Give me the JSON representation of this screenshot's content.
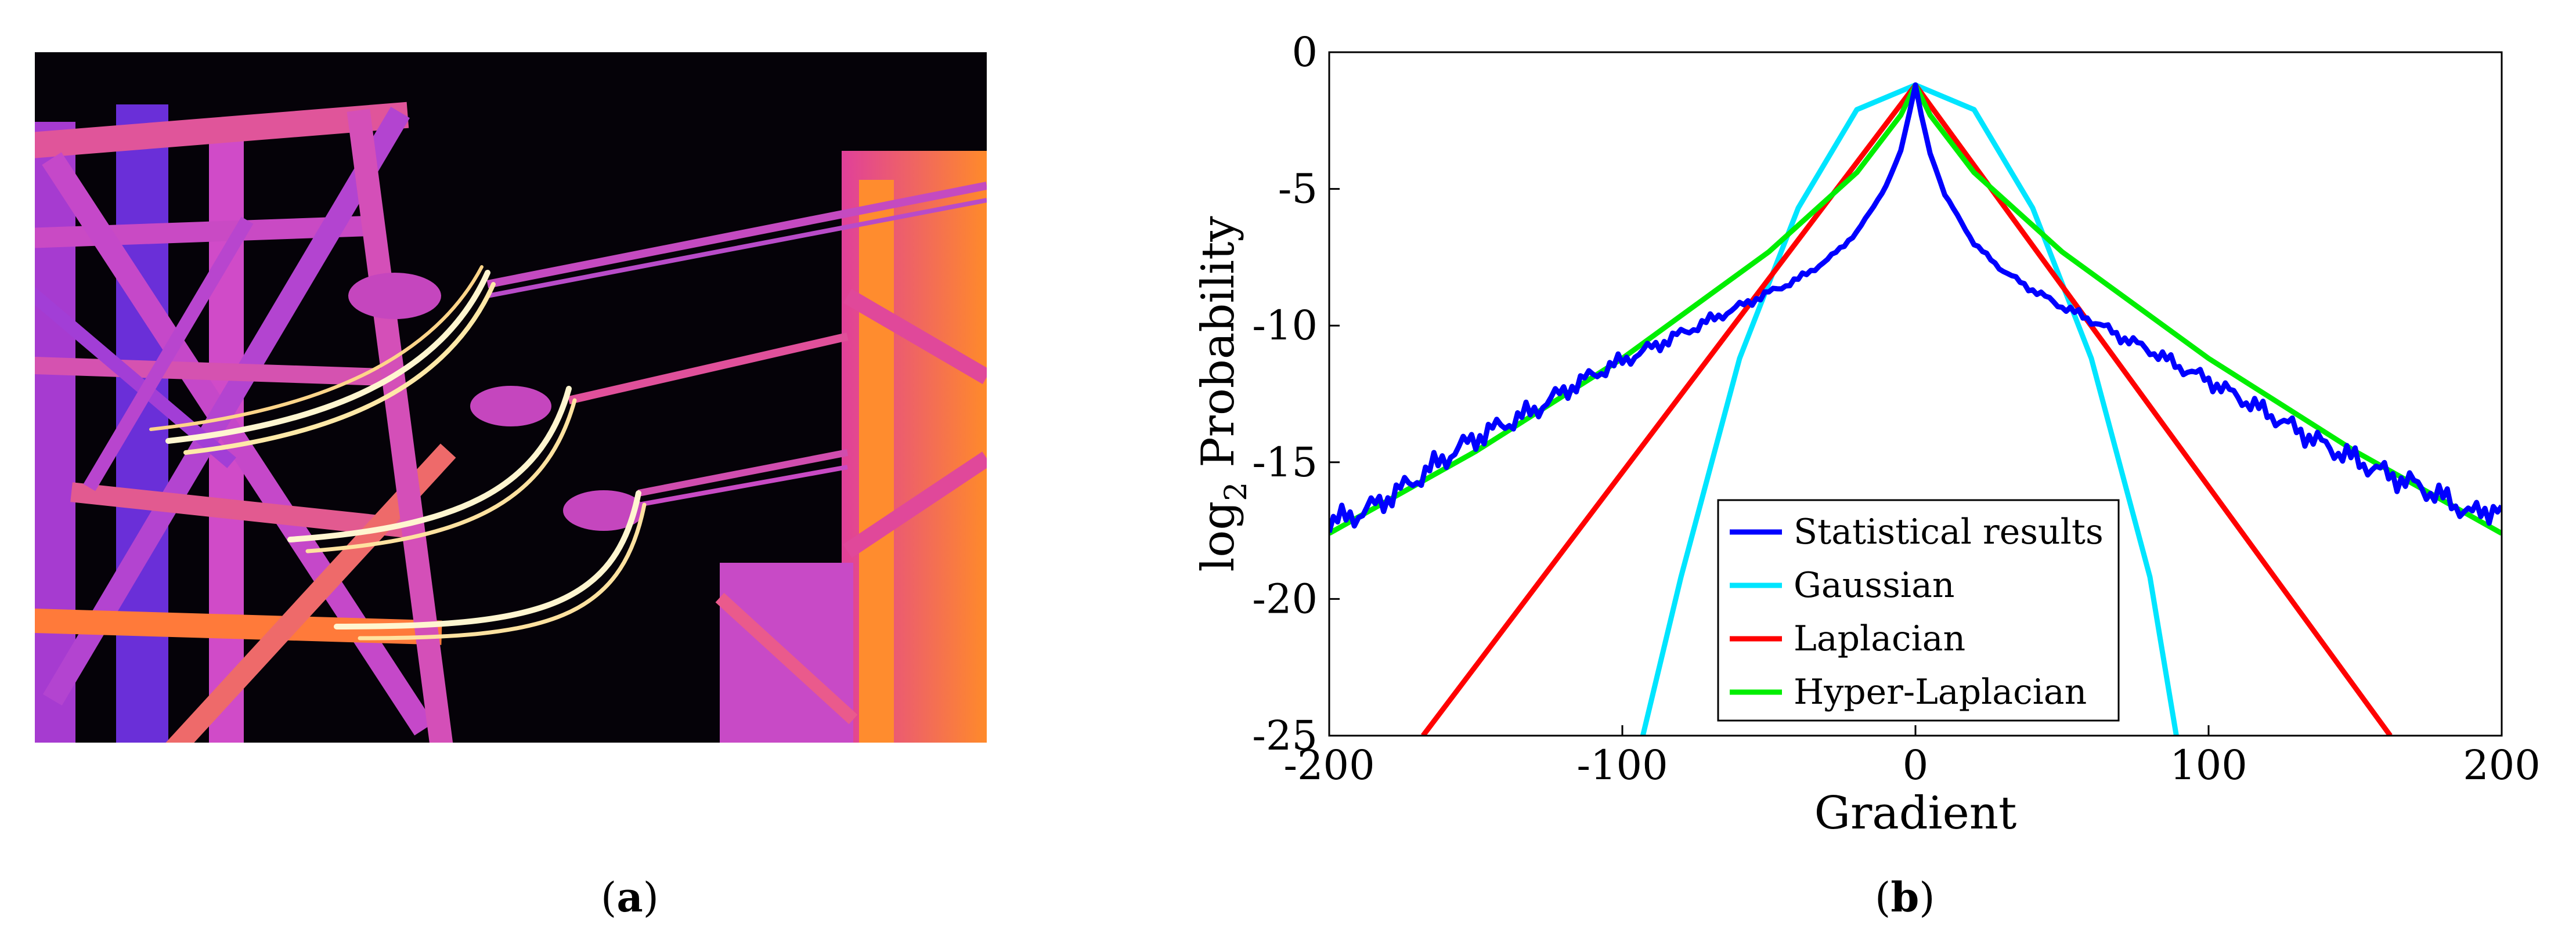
{
  "panels": {
    "a": {
      "label": "a"
    },
    "b": {
      "label": "b"
    }
  },
  "chart_data": {
    "type": "line",
    "xlabel": "Gradient",
    "ylabel_main": "log",
    "ylabel_sub": "2",
    "ylabel_rest": " Probability",
    "xlim": [
      -200,
      200
    ],
    "ylim": [
      -25,
      0
    ],
    "xticks": [
      -200,
      -100,
      0,
      100,
      200
    ],
    "yticks": [
      0,
      -5,
      -10,
      -15,
      -20,
      -25
    ],
    "legend_position": "lower-center",
    "series": [
      {
        "name": "Statistical results",
        "color": "#0000ff",
        "x": [
          -200,
          -190,
          -180,
          -170,
          -160,
          -150,
          -140,
          -130,
          -120,
          -110,
          -100,
          -90,
          -80,
          -70,
          -60,
          -50,
          -40,
          -30,
          -20,
          -10,
          -5,
          -2,
          0,
          2,
          5,
          10,
          20,
          30,
          40,
          50,
          60,
          70,
          80,
          90,
          100,
          110,
          120,
          130,
          140,
          150,
          160,
          170,
          180,
          190,
          200
        ],
        "y": [
          -17.2,
          -16.9,
          -16.3,
          -15.6,
          -14.8,
          -14.1,
          -13.6,
          -13.1,
          -12.4,
          -11.8,
          -11.3,
          -10.8,
          -10.3,
          -9.8,
          -9.3,
          -8.8,
          -8.3,
          -7.6,
          -6.6,
          -4.9,
          -3.6,
          -2.2,
          -1.2,
          -2.3,
          -3.7,
          -5.2,
          -7.0,
          -8.0,
          -8.7,
          -9.3,
          -9.8,
          -10.4,
          -10.9,
          -11.5,
          -12.0,
          -12.6,
          -13.2,
          -13.8,
          -14.4,
          -14.9,
          -15.4,
          -15.8,
          -16.3,
          -16.9,
          -16.6
        ]
      },
      {
        "name": "Gaussian",
        "color": "#00e5ff",
        "x": [
          -93,
          -80,
          -60,
          -40,
          -20,
          0,
          20,
          40,
          60,
          80,
          89
        ],
        "y": [
          -25,
          -19.2,
          -11.2,
          -5.7,
          -2.1,
          -1.2,
          -2.1,
          -5.7,
          -11.2,
          -19.2,
          -25
        ]
      },
      {
        "name": "Laplacian",
        "color": "#ff0000",
        "x": [
          -168,
          0,
          162
        ],
        "y": [
          -25,
          -1.2,
          -25
        ]
      },
      {
        "name": "Hyper-Laplacian",
        "color": "#00ee00",
        "x": [
          -200,
          -150,
          -100,
          -50,
          -20,
          -5,
          0,
          5,
          20,
          50,
          100,
          150,
          200
        ],
        "y": [
          -17.6,
          -14.6,
          -11.2,
          -7.3,
          -4.4,
          -2.3,
          -1.2,
          -2.3,
          -4.4,
          -7.3,
          -11.2,
          -14.6,
          -17.6
        ]
      }
    ]
  }
}
